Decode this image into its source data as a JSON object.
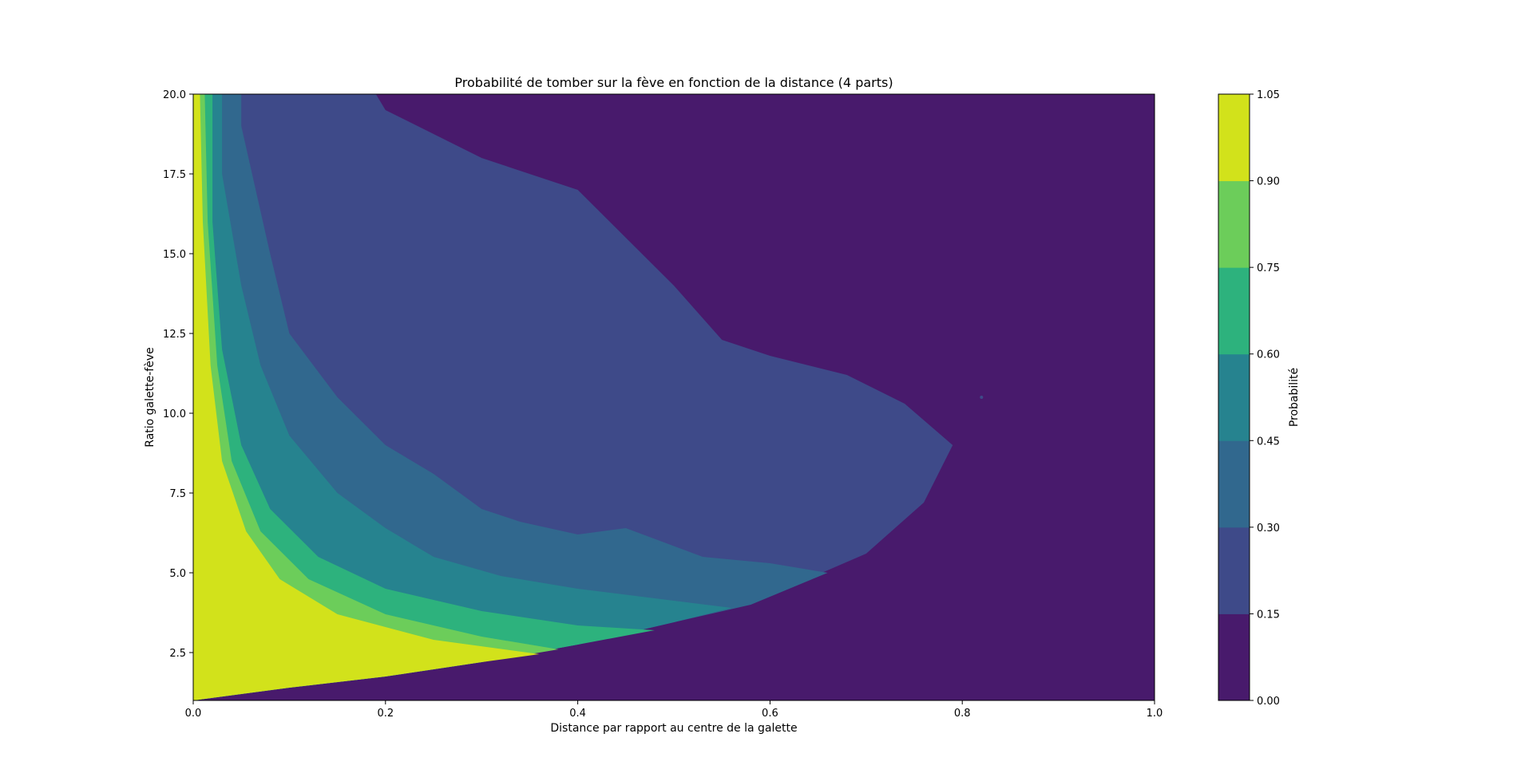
{
  "chart_data": {
    "type": "contourf",
    "title": "Probabilité de tomber sur la fève en fonction de la distance (4 parts)",
    "xlabel": "Distance par rapport au centre de la galette",
    "ylabel": "Ratio galette-fève",
    "xlim": [
      0.0,
      1.0
    ],
    "ylim": [
      1.0,
      20.0
    ],
    "xticks": [
      "0.0",
      "0.2",
      "0.4",
      "0.6",
      "0.8",
      "1.0"
    ],
    "xtick_values": [
      0.0,
      0.2,
      0.4,
      0.6,
      0.8,
      1.0
    ],
    "yticks": [
      "2.5",
      "5.0",
      "7.5",
      "10.0",
      "12.5",
      "15.0",
      "17.5",
      "20.0"
    ],
    "ytick_values": [
      2.5,
      5.0,
      7.5,
      10.0,
      12.5,
      15.0,
      17.5,
      20.0
    ],
    "colorbar": {
      "label": "Probabilité",
      "levels": [
        0.0,
        0.15,
        0.3,
        0.45,
        0.6,
        0.75,
        0.9,
        1.05
      ],
      "tick_labels": [
        "0.00",
        "0.15",
        "0.30",
        "0.45",
        "0.60",
        "0.75",
        "0.90",
        "1.05"
      ],
      "colors": [
        "#481a6c",
        "#3e4a89",
        "#31688e",
        "#26838f",
        "#2db27d",
        "#6ccd5a",
        "#d2e21b"
      ]
    },
    "bands": [
      {
        "level": 0.15,
        "boundary": [
          [
            0.0,
            1.0
          ],
          [
            0.1,
            1.4
          ],
          [
            0.2,
            1.75
          ],
          [
            0.3,
            2.2
          ],
          [
            0.4,
            2.75
          ],
          [
            0.5,
            3.45
          ],
          [
            0.6,
            4.3
          ],
          [
            0.7,
            5.6
          ],
          [
            0.76,
            7.2
          ],
          [
            0.79,
            9.0
          ],
          [
            0.74,
            10.3
          ],
          [
            0.68,
            11.2
          ],
          [
            0.6,
            11.8
          ],
          [
            0.55,
            12.3
          ],
          [
            0.5,
            14.0
          ],
          [
            0.45,
            15.5
          ],
          [
            0.4,
            17.0
          ],
          [
            0.3,
            18.0
          ],
          [
            0.2,
            19.5
          ],
          [
            0.19,
            20.0
          ]
        ]
      },
      {
        "level": 0.3,
        "boundary": [
          [
            0.0,
            1.0
          ],
          [
            0.1,
            1.4
          ],
          [
            0.2,
            1.75
          ],
          [
            0.3,
            2.2
          ],
          [
            0.4,
            2.75
          ],
          [
            0.5,
            3.45
          ],
          [
            0.58,
            4.0
          ],
          [
            0.66,
            5.0
          ],
          [
            0.6,
            5.3
          ],
          [
            0.53,
            5.5
          ],
          [
            0.45,
            6.4
          ],
          [
            0.4,
            6.2
          ],
          [
            0.34,
            6.6
          ],
          [
            0.3,
            7.0
          ],
          [
            0.25,
            8.1
          ],
          [
            0.2,
            9.0
          ],
          [
            0.15,
            10.5
          ],
          [
            0.1,
            12.5
          ],
          [
            0.08,
            15.0
          ],
          [
            0.05,
            19.0
          ],
          [
            0.05,
            20.0
          ]
        ]
      },
      {
        "level": 0.45,
        "boundary": [
          [
            0.0,
            1.0
          ],
          [
            0.1,
            1.4
          ],
          [
            0.2,
            1.75
          ],
          [
            0.3,
            2.2
          ],
          [
            0.4,
            2.75
          ],
          [
            0.5,
            3.45
          ],
          [
            0.56,
            3.9
          ],
          [
            0.48,
            4.2
          ],
          [
            0.4,
            4.5
          ],
          [
            0.32,
            4.9
          ],
          [
            0.25,
            5.5
          ],
          [
            0.2,
            6.4
          ],
          [
            0.15,
            7.5
          ],
          [
            0.1,
            9.3
          ],
          [
            0.07,
            11.5
          ],
          [
            0.05,
            14.0
          ],
          [
            0.03,
            17.5
          ],
          [
            0.03,
            20.0
          ]
        ]
      },
      {
        "level": 0.6,
        "boundary": [
          [
            0.0,
            1.0
          ],
          [
            0.1,
            1.4
          ],
          [
            0.2,
            1.75
          ],
          [
            0.3,
            2.2
          ],
          [
            0.4,
            2.75
          ],
          [
            0.48,
            3.2
          ],
          [
            0.4,
            3.35
          ],
          [
            0.3,
            3.8
          ],
          [
            0.2,
            4.5
          ],
          [
            0.13,
            5.5
          ],
          [
            0.08,
            7.0
          ],
          [
            0.05,
            9.0
          ],
          [
            0.03,
            12.0
          ],
          [
            0.02,
            16.0
          ],
          [
            0.02,
            20.0
          ]
        ]
      },
      {
        "level": 0.75,
        "boundary": [
          [
            0.0,
            1.0
          ],
          [
            0.1,
            1.4
          ],
          [
            0.2,
            1.75
          ],
          [
            0.3,
            2.2
          ],
          [
            0.38,
            2.6
          ],
          [
            0.3,
            3.0
          ],
          [
            0.2,
            3.7
          ],
          [
            0.12,
            4.8
          ],
          [
            0.07,
            6.3
          ],
          [
            0.04,
            8.5
          ],
          [
            0.025,
            11.5
          ],
          [
            0.015,
            16.0
          ],
          [
            0.012,
            20.0
          ]
        ]
      },
      {
        "level": 0.9,
        "boundary": [
          [
            0.0,
            1.0
          ],
          [
            0.1,
            1.4
          ],
          [
            0.2,
            1.75
          ],
          [
            0.3,
            2.2
          ],
          [
            0.36,
            2.45
          ],
          [
            0.25,
            2.9
          ],
          [
            0.15,
            3.7
          ],
          [
            0.09,
            4.8
          ],
          [
            0.055,
            6.3
          ],
          [
            0.03,
            8.5
          ],
          [
            0.018,
            11.5
          ],
          [
            0.01,
            16.0
          ],
          [
            0.007,
            20.0
          ]
        ]
      }
    ],
    "outliers": [
      [
        0.82,
        10.5
      ]
    ]
  }
}
